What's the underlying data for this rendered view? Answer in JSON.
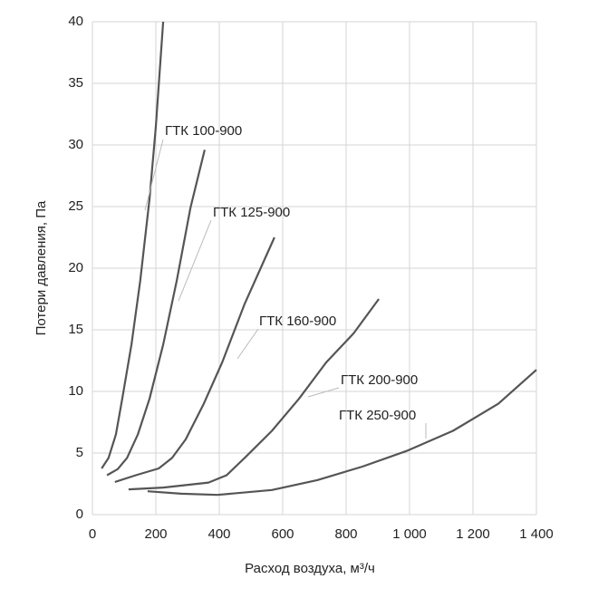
{
  "chart_data": {
    "type": "line",
    "x_label": "Расход воздуха, м³/ч",
    "y_label": "Потери давления, Па",
    "xlim": [
      0,
      1400
    ],
    "xticks": [
      0,
      200,
      400,
      600,
      800,
      {
        "value": 1000,
        "label": "1 000"
      },
      {
        "value": 1200,
        "label": "1 200"
      },
      {
        "value": 1400,
        "label": "1 400"
      }
    ],
    "ylim": [
      0,
      40
    ],
    "yticks": [
      0,
      5,
      10,
      15,
      20,
      25,
      30,
      35,
      40
    ],
    "grid": true,
    "series": [
      {
        "name": "ГТК 100-900",
        "color": "#555555",
        "x": [
          29,
          51,
          74,
          94,
          123,
          151,
          180,
          200,
          223
        ],
        "values": [
          3.75,
          4.6,
          6.5,
          9.4,
          13.8,
          19.0,
          25.6,
          31.5,
          40
        ]
      },
      {
        "name": "ГТК 125-900",
        "color": "#555555",
        "x": [
          46,
          80,
          109,
          143,
          180,
          223,
          266,
          309,
          354
        ],
        "values": [
          3.2,
          3.7,
          4.6,
          6.5,
          9.4,
          13.8,
          19.0,
          24.9,
          29.6
        ]
      },
      {
        "name": "ГТК 160-900",
        "color": "#555555",
        "x": [
          71,
          137,
          209,
          251,
          294,
          351,
          409,
          480,
          574
        ],
        "values": [
          2.65,
          3.2,
          3.75,
          4.6,
          6.1,
          9.0,
          12.35,
          17.1,
          22.5
        ]
      },
      {
        "name": "ГТК 200-900",
        "color": "#555555",
        "x": [
          114,
          223,
          366,
          423,
          480,
          566,
          651,
          737,
          823,
          903
        ],
        "values": [
          2.05,
          2.2,
          2.6,
          3.2,
          4.6,
          6.8,
          9.4,
          12.35,
          14.7,
          17.5
        ]
      },
      {
        "name": "ГТК 250-900",
        "color": "#555555",
        "x": [
          174,
          280,
          394,
          566,
          709,
          851,
          994,
          1137,
          1280,
          1400
        ],
        "values": [
          1.9,
          1.7,
          1.6,
          2.0,
          2.8,
          3.9,
          5.2,
          6.8,
          9.0,
          11.75
        ]
      }
    ]
  }
}
